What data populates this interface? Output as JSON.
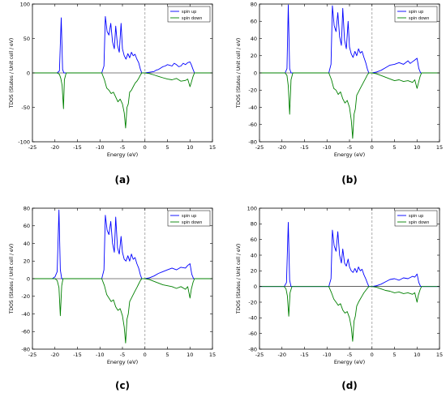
{
  "colors": {
    "spin_up": "#0000ff",
    "spin_down": "#008000",
    "zero_line": "#999999",
    "axis": "#000000"
  },
  "chart_data": [
    {
      "type": "line",
      "caption": "(a)",
      "xlabel": "Energy (eV)",
      "ylabel": "TDOS (States / Unit cell / eV)",
      "xlim": [
        -25,
        15
      ],
      "ylim": [
        -100,
        100
      ],
      "xticks": [
        -25,
        -20,
        -15,
        -10,
        -5,
        0,
        5,
        10,
        15
      ],
      "yticks": [
        -100,
        -50,
        0,
        50,
        100
      ],
      "fermi_level": 0,
      "legend_position": "top-right",
      "series": [
        {
          "name": "spin up",
          "color": "#0000ff",
          "x": [
            -25,
            -19.5,
            -19,
            -18.6,
            -18.3,
            -18,
            -17.6,
            -9.6,
            -9.1,
            -8.8,
            -8.4,
            -8,
            -7.6,
            -7.2,
            -6.8,
            -6.5,
            -6.1,
            -5.7,
            -5.3,
            -5,
            -4.6,
            -4.2,
            -3.8,
            -3.4,
            -3,
            -2.6,
            -2.2,
            -1.8,
            -1.4,
            -1,
            -0.7,
            0,
            1,
            2,
            2.5,
            3,
            3.5,
            4,
            4.5,
            5,
            5.5,
            6,
            6.5,
            7,
            7.5,
            8,
            8.5,
            9,
            9.5,
            10,
            10.3,
            10.7,
            11,
            15
          ],
          "y": [
            0,
            0,
            3,
            80,
            5,
            0,
            0,
            0,
            10,
            82,
            60,
            55,
            72,
            45,
            35,
            68,
            40,
            30,
            72,
            35,
            25,
            20,
            28,
            22,
            30,
            25,
            27,
            20,
            15,
            5,
            0,
            0,
            1,
            2,
            4,
            5,
            7,
            9,
            10,
            12,
            11,
            10,
            14,
            12,
            9,
            10,
            14,
            12,
            15,
            16,
            12,
            5,
            0,
            0
          ]
        },
        {
          "name": "spin down",
          "color": "#008000",
          "x": [
            -25,
            -19.5,
            -19,
            -18.7,
            -18.4,
            -18.1,
            -17.9,
            -17.5,
            -9.6,
            -9,
            -8.5,
            -8,
            -7.5,
            -7,
            -6.5,
            -6,
            -5.5,
            -5,
            -4.6,
            -4.3,
            -4,
            -3.7,
            -3.4,
            -3,
            -2.6,
            -2.2,
            -1.8,
            -1.4,
            -1,
            -0.7,
            0,
            1,
            2,
            3,
            4,
            5,
            6,
            7,
            8,
            9,
            9.5,
            10,
            10.3,
            10.7,
            11,
            15
          ],
          "y": [
            0,
            0,
            -2,
            -8,
            -18,
            -52,
            -10,
            0,
            0,
            -10,
            -22,
            -25,
            -30,
            -28,
            -35,
            -42,
            -38,
            -45,
            -58,
            -80,
            -50,
            -45,
            -28,
            -25,
            -20,
            -15,
            -12,
            -8,
            -3,
            0,
            0,
            -1,
            -3,
            -5,
            -7,
            -9,
            -10,
            -8,
            -12,
            -11,
            -9,
            -20,
            -14,
            -5,
            0,
            0
          ]
        }
      ]
    },
    {
      "type": "line",
      "caption": "(b)",
      "xlabel": "Energy (eV)",
      "ylabel": "TDOS (States / Unit cell / eV)",
      "xlim": [
        -25,
        15
      ],
      "ylim": [
        -80,
        80
      ],
      "xticks": [
        -25,
        -20,
        -15,
        -10,
        -5,
        0,
        5,
        10,
        15
      ],
      "yticks": [
        -80,
        -60,
        -40,
        -20,
        0,
        20,
        40,
        60,
        80
      ],
      "fermi_level": 0,
      "legend_position": "top-right",
      "series": [
        {
          "name": "spin up",
          "color": "#0000ff",
          "x": [
            -25,
            -19.3,
            -18.9,
            -18.6,
            -18.3,
            -18,
            -9.6,
            -9.1,
            -8.8,
            -8.4,
            -8,
            -7.6,
            -7.2,
            -6.8,
            -6.5,
            -6.1,
            -5.7,
            -5.3,
            -5,
            -4.6,
            -4.2,
            -3.8,
            -3.4,
            -3,
            -2.6,
            -2.2,
            -1.8,
            -1.4,
            -1,
            -0.7,
            0,
            1,
            2,
            3,
            4,
            5,
            6,
            7,
            8,
            8.5,
            9,
            9.5,
            10,
            10.4,
            10.8,
            15
          ],
          "y": [
            0,
            0,
            5,
            79,
            5,
            0,
            0,
            10,
            78,
            55,
            48,
            70,
            42,
            32,
            75,
            38,
            28,
            60,
            30,
            22,
            18,
            25,
            20,
            28,
            23,
            25,
            18,
            12,
            4,
            0,
            0,
            1,
            3,
            6,
            9,
            10,
            12,
            10,
            14,
            11,
            13,
            15,
            17,
            5,
            0,
            0
          ]
        },
        {
          "name": "spin down",
          "color": "#008000",
          "x": [
            -25,
            -19.3,
            -18.9,
            -18.6,
            -18.3,
            -18,
            -17.6,
            -9.6,
            -9,
            -8.5,
            -8,
            -7.5,
            -7,
            -6.5,
            -6,
            -5.5,
            -5,
            -4.6,
            -4.3,
            -4,
            -3.7,
            -3.4,
            -3,
            -2.6,
            -2.2,
            -1.8,
            -1.4,
            -1,
            -0.7,
            0,
            1,
            2,
            3,
            4,
            5,
            6,
            7,
            8,
            9,
            9.5,
            10,
            10.3,
            10.7,
            11,
            15
          ],
          "y": [
            0,
            0,
            -3,
            -15,
            -48,
            -8,
            0,
            0,
            -8,
            -18,
            -20,
            -25,
            -22,
            -30,
            -35,
            -32,
            -40,
            -55,
            -76,
            -48,
            -42,
            -26,
            -22,
            -18,
            -14,
            -10,
            -6,
            -2,
            0,
            0,
            -1,
            -3,
            -5,
            -7,
            -9,
            -8,
            -10,
            -9,
            -11,
            -8,
            -18,
            -12,
            -4,
            0,
            0
          ]
        }
      ]
    },
    {
      "type": "line",
      "caption": "(c)",
      "xlabel": "Energy (eV)",
      "ylabel": "TDOS (States / Unit cell / eV)",
      "xlim": [
        -25,
        15
      ],
      "ylim": [
        -80,
        80
      ],
      "xticks": [
        -25,
        -20,
        -15,
        -10,
        -5,
        0,
        5,
        10,
        15
      ],
      "yticks": [
        -80,
        -60,
        -40,
        -20,
        0,
        20,
        40,
        60,
        80
      ],
      "fermi_level": 0,
      "legend_position": "top-right",
      "series": [
        {
          "name": "spin up",
          "color": "#0000ff",
          "x": [
            -25,
            -20.6,
            -20,
            -19.5,
            -19.1,
            -18.8,
            -18.5,
            -9.6,
            -9.1,
            -8.8,
            -8.4,
            -8,
            -7.6,
            -7.2,
            -6.8,
            -6.5,
            -6.1,
            -5.7,
            -5.3,
            -5,
            -4.6,
            -4.2,
            -3.8,
            -3.4,
            -3,
            -2.6,
            -2.2,
            -1.8,
            -1.4,
            -1,
            -0.7,
            0,
            1,
            2,
            3,
            4,
            5,
            6,
            7,
            8,
            9,
            9.5,
            10,
            10.4,
            10.8,
            15
          ],
          "y": [
            0,
            0,
            2,
            8,
            78,
            10,
            0,
            0,
            10,
            72,
            55,
            50,
            65,
            40,
            30,
            70,
            35,
            28,
            48,
            30,
            22,
            20,
            26,
            20,
            28,
            22,
            24,
            17,
            12,
            4,
            0,
            0,
            1,
            3,
            6,
            8,
            10,
            12,
            10,
            13,
            12,
            15,
            17,
            5,
            0,
            0
          ]
        },
        {
          "name": "spin down",
          "color": "#008000",
          "x": [
            -25,
            -20,
            -19.5,
            -19.1,
            -18.8,
            -18.5,
            -18.2,
            -9.6,
            -9,
            -8.5,
            -8,
            -7.5,
            -7,
            -6.5,
            -6,
            -5.5,
            -5,
            -4.6,
            -4.3,
            -4,
            -3.7,
            -3.4,
            -3,
            -2.6,
            -2.2,
            -1.8,
            -1.4,
            -1,
            -0.7,
            0,
            1,
            2,
            3,
            4,
            5,
            6,
            7,
            8,
            9,
            9.5,
            10,
            10.3,
            10.7,
            11,
            15
          ],
          "y": [
            0,
            0,
            -2,
            -10,
            -42,
            -8,
            0,
            0,
            -8,
            -18,
            -22,
            -26,
            -24,
            -32,
            -36,
            -34,
            -42,
            -55,
            -73,
            -46,
            -40,
            -26,
            -22,
            -18,
            -14,
            -10,
            -6,
            -2,
            0,
            0,
            -1,
            -3,
            -5,
            -7,
            -8,
            -9,
            -11,
            -9,
            -12,
            -9,
            -22,
            -12,
            -4,
            0,
            0
          ]
        }
      ]
    },
    {
      "type": "line",
      "caption": "(d)",
      "xlabel": "Energy (eV)",
      "ylabel": "TDOS (States / Unit cell / eV)",
      "xlim": [
        -25,
        15
      ],
      "ylim": [
        -80,
        100
      ],
      "xticks": [
        -25,
        -20,
        -15,
        -10,
        -5,
        0,
        5,
        10,
        15
      ],
      "yticks": [
        -80,
        -60,
        -40,
        -20,
        0,
        20,
        40,
        60,
        80,
        100
      ],
      "fermi_level": 0,
      "legend_position": "top-right",
      "series": [
        {
          "name": "spin up",
          "color": "#0000ff",
          "x": [
            -25,
            -19.5,
            -19,
            -18.6,
            -18.3,
            -18,
            -9.6,
            -9.1,
            -8.8,
            -8.4,
            -8,
            -7.6,
            -7.2,
            -6.8,
            -6.5,
            -6.1,
            -5.7,
            -5.3,
            -5,
            -4.6,
            -4.2,
            -3.8,
            -3.4,
            -3,
            -2.6,
            -2.2,
            -1.8,
            -1.4,
            -1,
            -0.7,
            0,
            1,
            2,
            3,
            4,
            5,
            6,
            7,
            8,
            9,
            9.5,
            10,
            10.4,
            10.8,
            15
          ],
          "y": [
            0,
            0,
            5,
            82,
            8,
            0,
            0,
            10,
            72,
            52,
            45,
            70,
            40,
            30,
            48,
            30,
            26,
            35,
            25,
            20,
            18,
            23,
            18,
            25,
            20,
            22,
            15,
            10,
            4,
            0,
            0,
            1,
            3,
            6,
            9,
            10,
            8,
            11,
            10,
            13,
            12,
            16,
            5,
            0,
            0
          ]
        },
        {
          "name": "spin down",
          "color": "#008000",
          "x": [
            -25,
            -19.5,
            -19.1,
            -18.8,
            -18.5,
            -18.2,
            -17.8,
            -9.6,
            -9,
            -8.5,
            -8,
            -7.5,
            -7,
            -6.5,
            -6,
            -5.5,
            -5,
            -4.6,
            -4.3,
            -4,
            -3.7,
            -3.4,
            -3,
            -2.6,
            -2.2,
            -1.8,
            -1.4,
            -1,
            -0.7,
            0,
            1,
            2,
            3,
            4,
            5,
            6,
            7,
            8,
            9,
            9.5,
            10,
            10.3,
            10.7,
            11,
            15
          ],
          "y": [
            0,
            0,
            -3,
            -12,
            -38,
            -8,
            0,
            0,
            -8,
            -16,
            -20,
            -24,
            -22,
            -30,
            -34,
            -32,
            -40,
            -52,
            -70,
            -44,
            -38,
            -25,
            -20,
            -16,
            -12,
            -8,
            -5,
            -2,
            0,
            0,
            -1,
            -3,
            -5,
            -6,
            -8,
            -7,
            -9,
            -8,
            -10,
            -8,
            -20,
            -11,
            -4,
            0,
            0
          ]
        }
      ]
    }
  ]
}
